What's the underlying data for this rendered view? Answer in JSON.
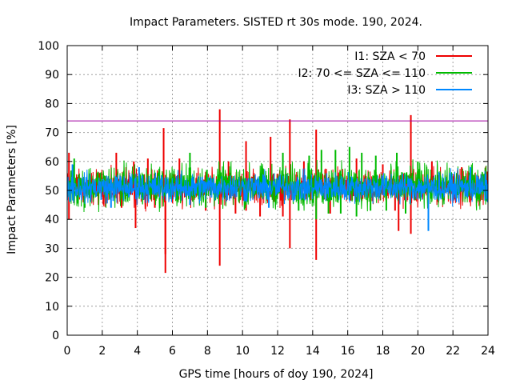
{
  "chart_data": {
    "type": "line",
    "title": "Impact Parameters. SISTED rt 30s mode. 190, 2024.",
    "xlabel": "GPS time [hours of doy 190, 2024]",
    "ylabel": "Impact Parameters [%]",
    "xlim": [
      0,
      24
    ],
    "ylim": [
      0,
      100
    ],
    "x_ticks": [
      0,
      2,
      4,
      6,
      8,
      10,
      12,
      14,
      16,
      18,
      20,
      22,
      24
    ],
    "y_ticks": [
      0,
      10,
      20,
      30,
      40,
      50,
      60,
      70,
      80,
      90,
      100
    ],
    "grid": true,
    "legend_position": "top-right",
    "threshold": {
      "value": 74,
      "color": "#a000a0"
    },
    "series": [
      {
        "name": "I1: SZA < 70",
        "color": "#ee0000",
        "baseline": {
          "min": 44,
          "max": 58
        },
        "spikes": [
          {
            "x": 0.1,
            "value": 63
          },
          {
            "x": 0.1,
            "value": 40
          },
          {
            "x": 2.8,
            "value": 63
          },
          {
            "x": 3.1,
            "value": 44
          },
          {
            "x": 3.8,
            "value": 60
          },
          {
            "x": 3.9,
            "value": 37
          },
          {
            "x": 4.6,
            "value": 61
          },
          {
            "x": 5.0,
            "value": 44
          },
          {
            "x": 5.5,
            "value": 71.5
          },
          {
            "x": 5.6,
            "value": 21.5
          },
          {
            "x": 5.6,
            "value": 28
          },
          {
            "x": 6.4,
            "value": 61
          },
          {
            "x": 7.9,
            "value": 43
          },
          {
            "x": 8.7,
            "value": 78
          },
          {
            "x": 8.7,
            "value": 24
          },
          {
            "x": 9.2,
            "value": 60
          },
          {
            "x": 9.6,
            "value": 42
          },
          {
            "x": 10.2,
            "value": 67
          },
          {
            "x": 10.2,
            "value": 43
          },
          {
            "x": 11.0,
            "value": 41
          },
          {
            "x": 11.6,
            "value": 68.5
          },
          {
            "x": 12.3,
            "value": 41
          },
          {
            "x": 12.7,
            "value": 74.5
          },
          {
            "x": 12.7,
            "value": 30
          },
          {
            "x": 13.5,
            "value": 60
          },
          {
            "x": 14.2,
            "value": 71
          },
          {
            "x": 14.2,
            "value": 26
          },
          {
            "x": 15.0,
            "value": 42
          },
          {
            "x": 16.5,
            "value": 61
          },
          {
            "x": 18.0,
            "value": 59
          },
          {
            "x": 18.7,
            "value": 43
          },
          {
            "x": 18.9,
            "value": 36
          },
          {
            "x": 19.6,
            "value": 76
          },
          {
            "x": 19.6,
            "value": 35
          },
          {
            "x": 20.8,
            "value": 60
          },
          {
            "x": 22.5,
            "value": 58
          }
        ]
      },
      {
        "name": "I2: 70 <= SZA <= 110",
        "color": "#00bb00",
        "baseline": {
          "min": 43,
          "max": 60
        },
        "spikes": [
          {
            "x": 0.4,
            "value": 61
          },
          {
            "x": 1.0,
            "value": 44
          },
          {
            "x": 7.0,
            "value": 63
          },
          {
            "x": 7.9,
            "value": 44
          },
          {
            "x": 12.3,
            "value": 63
          },
          {
            "x": 13.2,
            "value": 43
          },
          {
            "x": 13.8,
            "value": 62
          },
          {
            "x": 14.2,
            "value": 40
          },
          {
            "x": 14.5,
            "value": 64
          },
          {
            "x": 14.9,
            "value": 42
          },
          {
            "x": 15.3,
            "value": 64
          },
          {
            "x": 15.6,
            "value": 42
          },
          {
            "x": 16.1,
            "value": 65
          },
          {
            "x": 16.5,
            "value": 41
          },
          {
            "x": 16.8,
            "value": 63
          },
          {
            "x": 17.3,
            "value": 43
          },
          {
            "x": 17.6,
            "value": 62
          },
          {
            "x": 18.2,
            "value": 43
          },
          {
            "x": 18.8,
            "value": 63
          },
          {
            "x": 19.3,
            "value": 42
          },
          {
            "x": 20.0,
            "value": 60
          }
        ]
      },
      {
        "name": "I3: SZA > 110",
        "color": "#0088ff",
        "baseline": {
          "min": 45,
          "max": 57
        },
        "spikes": [
          {
            "x": 0.3,
            "value": 59
          },
          {
            "x": 2.5,
            "value": 44
          },
          {
            "x": 4.1,
            "value": 58
          },
          {
            "x": 7.0,
            "value": 45
          },
          {
            "x": 11.5,
            "value": 44
          },
          {
            "x": 20.6,
            "value": 36
          },
          {
            "x": 23.0,
            "value": 58
          }
        ]
      }
    ]
  }
}
